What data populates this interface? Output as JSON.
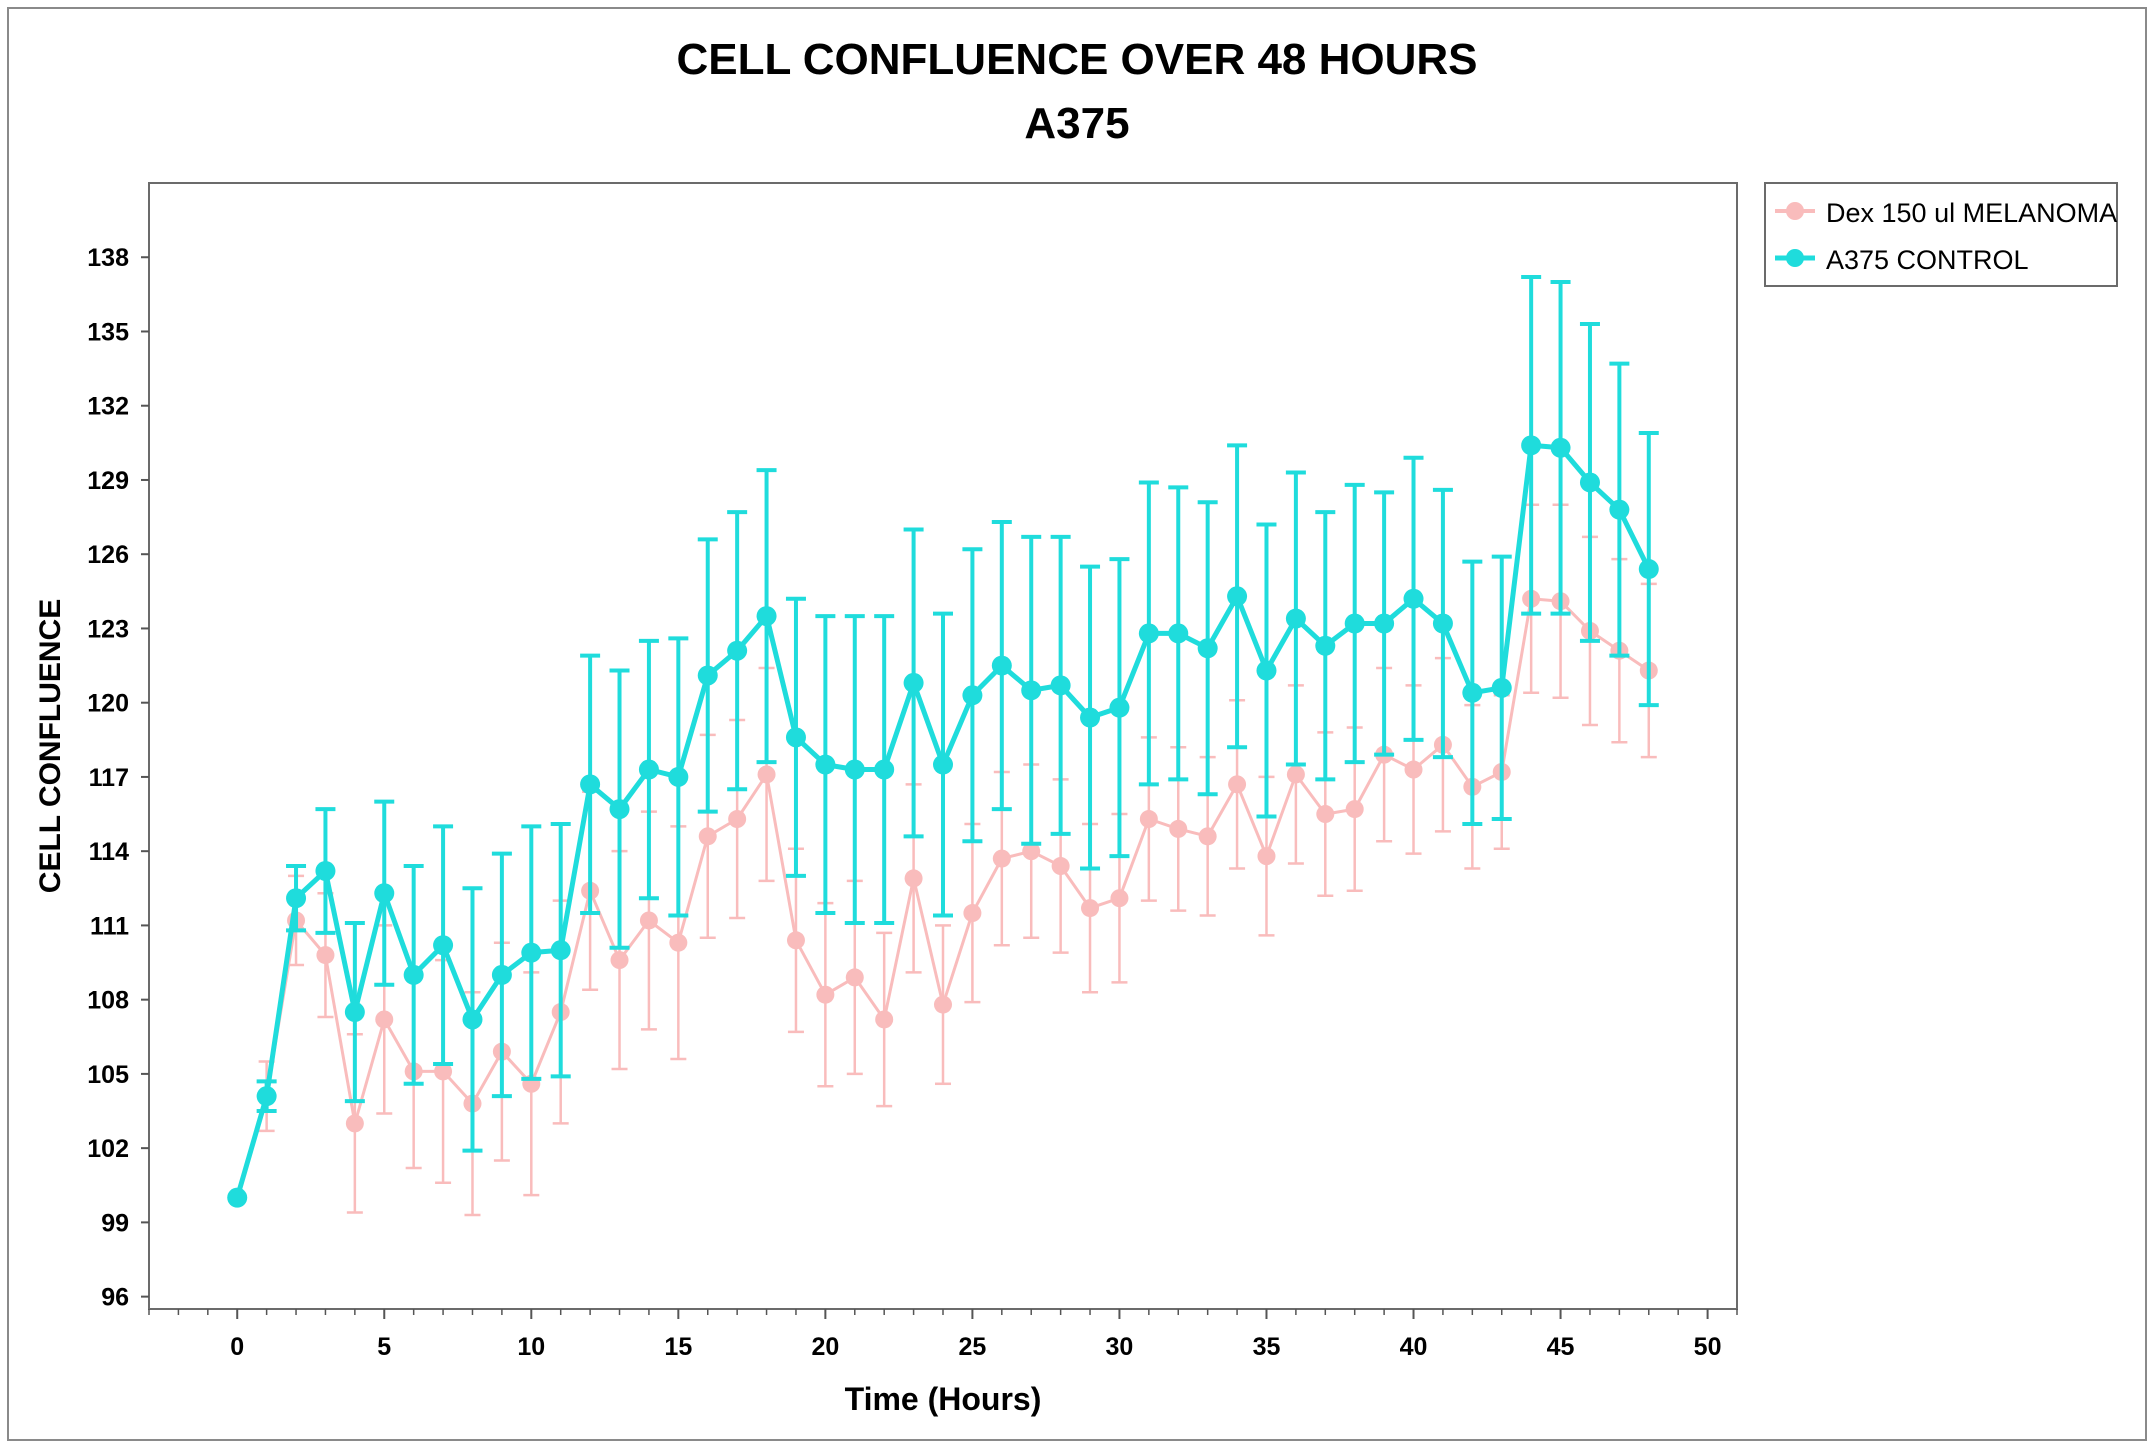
{
  "chart_data": {
    "type": "line",
    "title": "CELL CONFLUENCE OVER 48 HOURS",
    "subtitle": "A375",
    "xlabel": "Time (Hours)",
    "ylabel": "CELL CONFLUENCE",
    "xlim": [
      -3,
      51
    ],
    "ylim": [
      95.5,
      141
    ],
    "x_ticks": [
      0,
      5,
      10,
      15,
      20,
      25,
      30,
      35,
      40,
      45,
      50
    ],
    "x_minor_step": 1,
    "y_ticks": [
      96,
      99,
      102,
      105,
      108,
      111,
      114,
      117,
      120,
      123,
      126,
      129,
      132,
      135,
      138
    ],
    "legend": {
      "position": "outside-top-right"
    },
    "x": [
      0,
      1,
      2,
      3,
      4,
      5,
      6,
      7,
      8,
      9,
      10,
      11,
      12,
      13,
      14,
      15,
      16,
      17,
      18,
      19,
      20,
      21,
      22,
      23,
      24,
      25,
      26,
      27,
      28,
      29,
      30,
      31,
      32,
      33,
      34,
      35,
      36,
      37,
      38,
      39,
      40,
      41,
      42,
      43,
      44,
      45,
      46,
      47,
      48
    ],
    "series": [
      {
        "name": "Dex 150 ul MELANOMA",
        "color": "#f9bcbc",
        "values": [
          100,
          104.1,
          111.2,
          109.8,
          103,
          107.2,
          105.1,
          105.1,
          103.8,
          105.9,
          104.6,
          107.5,
          112.4,
          109.6,
          111.2,
          110.3,
          114.6,
          115.3,
          117.1,
          110.4,
          108.2,
          108.9,
          107.2,
          112.9,
          107.8,
          111.5,
          113.7,
          114,
          113.4,
          111.7,
          112.1,
          115.3,
          114.9,
          114.6,
          116.7,
          113.8,
          117.1,
          115.5,
          115.7,
          117.9,
          117.3,
          118.3,
          116.6,
          117.2,
          124.2,
          124.1,
          122.9,
          122.1,
          121.3
        ],
        "errors": [
          0,
          1.4,
          1.8,
          2.5,
          3.6,
          3.8,
          3.9,
          4.5,
          4.5,
          4.4,
          4.5,
          4.5,
          4,
          4.4,
          4.4,
          4.7,
          4.1,
          4,
          4.3,
          3.7,
          3.7,
          3.9,
          3.5,
          3.8,
          3.2,
          3.6,
          3.5,
          3.5,
          3.5,
          3.4,
          3.4,
          3.3,
          3.3,
          3.2,
          3.4,
          3.2,
          3.6,
          3.3,
          3.3,
          3.5,
          3.4,
          3.5,
          3.3,
          3.1,
          3.8,
          3.9,
          3.8,
          3.7,
          3.5
        ]
      },
      {
        "name": "A375 CONTROL",
        "color": "#1fdcdc",
        "values": [
          100,
          104.1,
          112.1,
          113.2,
          107.5,
          112.3,
          109,
          110.2,
          107.2,
          109,
          109.9,
          110,
          116.7,
          115.7,
          117.3,
          117,
          121.1,
          122.1,
          123.5,
          118.6,
          117.5,
          117.3,
          117.3,
          120.8,
          117.5,
          120.3,
          121.5,
          120.5,
          120.7,
          119.4,
          119.8,
          122.8,
          122.8,
          122.2,
          124.3,
          121.3,
          123.4,
          122.3,
          123.2,
          123.2,
          124.2,
          123.2,
          120.4,
          120.6,
          130.4,
          130.3,
          128.9,
          127.8,
          125.4
        ],
        "errors": [
          0,
          0.6,
          1.3,
          2.5,
          3.6,
          3.7,
          4.4,
          4.8,
          5.3,
          4.9,
          5.1,
          5.1,
          5.2,
          5.6,
          5.2,
          5.6,
          5.5,
          5.6,
          5.9,
          5.6,
          6,
          6.2,
          6.2,
          6.2,
          6.1,
          5.9,
          5.8,
          6.2,
          6,
          6.1,
          6,
          6.1,
          5.9,
          5.9,
          6.1,
          5.9,
          5.9,
          5.4,
          5.6,
          5.3,
          5.7,
          5.4,
          5.3,
          5.3,
          6.8,
          6.7,
          6.4,
          5.9,
          5.5
        ]
      }
    ]
  }
}
